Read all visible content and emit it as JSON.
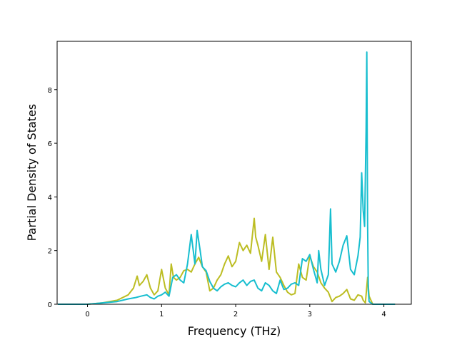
{
  "chart_data": {
    "type": "line",
    "title": "",
    "xlabel": "Frequency (THz)",
    "ylabel": "Partial Density of States",
    "xlim": [
      -0.41,
      4.37
    ],
    "ylim": [
      0,
      9.8
    ],
    "xticks": [
      0,
      1,
      2,
      3,
      4
    ],
    "yticks": [
      0,
      2,
      4,
      6,
      8
    ],
    "xtick_labels": [
      "0",
      "1",
      "2",
      "3",
      "4"
    ],
    "ytick_labels": [
      "0",
      "2",
      "4",
      "6",
      "8"
    ],
    "grid": false,
    "legend": "none",
    "series": [
      {
        "color": "#bcbd22",
        "x": [
          -0.4,
          0.0,
          0.2,
          0.4,
          0.55,
          0.62,
          0.67,
          0.7,
          0.75,
          0.8,
          0.85,
          0.9,
          0.95,
          1.0,
          1.05,
          1.1,
          1.13,
          1.16,
          1.2,
          1.25,
          1.3,
          1.35,
          1.4,
          1.45,
          1.5,
          1.55,
          1.6,
          1.65,
          1.7,
          1.75,
          1.8,
          1.85,
          1.9,
          1.95,
          2.0,
          2.05,
          2.1,
          2.15,
          2.2,
          2.25,
          2.27,
          2.3,
          2.35,
          2.4,
          2.45,
          2.5,
          2.55,
          2.6,
          2.65,
          2.7,
          2.75,
          2.8,
          2.85,
          2.9,
          2.95,
          3.0,
          3.05,
          3.1,
          3.15,
          3.2,
          3.25,
          3.3,
          3.35,
          3.4,
          3.45,
          3.5,
          3.55,
          3.6,
          3.65,
          3.7,
          3.72,
          3.75,
          3.78,
          3.8,
          3.85,
          4.15
        ],
        "y": [
          0,
          0,
          0.05,
          0.15,
          0.35,
          0.6,
          1.05,
          0.7,
          0.85,
          1.1,
          0.6,
          0.35,
          0.5,
          1.3,
          0.6,
          0.35,
          1.5,
          1.0,
          0.9,
          1.0,
          1.25,
          1.3,
          1.2,
          1.5,
          1.75,
          1.4,
          1.2,
          0.5,
          0.6,
          0.9,
          1.1,
          1.5,
          1.8,
          1.4,
          1.6,
          2.3,
          2.0,
          2.2,
          1.9,
          3.2,
          2.5,
          2.2,
          1.6,
          2.6,
          1.3,
          2.5,
          1.2,
          1.0,
          0.7,
          0.45,
          0.35,
          0.4,
          1.5,
          1.0,
          0.9,
          1.8,
          1.4,
          1.2,
          0.8,
          0.6,
          0.45,
          0.1,
          0.25,
          0.3,
          0.4,
          0.55,
          0.2,
          0.15,
          0.35,
          0.3,
          0.15,
          0.05,
          1.0,
          0.3,
          0,
          0
        ]
      },
      {
        "color": "#17becf",
        "x": [
          -0.4,
          0.0,
          0.2,
          0.4,
          0.55,
          0.65,
          0.72,
          0.8,
          0.85,
          0.9,
          0.95,
          1.0,
          1.05,
          1.1,
          1.15,
          1.2,
          1.25,
          1.3,
          1.35,
          1.4,
          1.45,
          1.48,
          1.52,
          1.55,
          1.6,
          1.65,
          1.7,
          1.75,
          1.8,
          1.85,
          1.9,
          1.95,
          2.0,
          2.05,
          2.1,
          2.15,
          2.2,
          2.25,
          2.3,
          2.35,
          2.4,
          2.45,
          2.5,
          2.55,
          2.6,
          2.65,
          2.7,
          2.75,
          2.8,
          2.85,
          2.9,
          2.95,
          3.0,
          3.05,
          3.1,
          3.12,
          3.15,
          3.2,
          3.25,
          3.28,
          3.3,
          3.35,
          3.4,
          3.45,
          3.5,
          3.55,
          3.6,
          3.65,
          3.68,
          3.7,
          3.72,
          3.74,
          3.76,
          3.77,
          3.78,
          3.79,
          3.8,
          3.85,
          4.15
        ],
        "y": [
          0,
          0,
          0.05,
          0.1,
          0.2,
          0.25,
          0.3,
          0.35,
          0.25,
          0.2,
          0.3,
          0.35,
          0.45,
          0.3,
          1.0,
          1.1,
          0.9,
          0.8,
          1.5,
          2.6,
          1.5,
          2.75,
          2.0,
          1.4,
          1.25,
          0.85,
          0.6,
          0.5,
          0.65,
          0.75,
          0.8,
          0.7,
          0.65,
          0.8,
          0.9,
          0.7,
          0.85,
          0.9,
          0.6,
          0.5,
          0.8,
          0.7,
          0.5,
          0.4,
          0.9,
          0.55,
          0.6,
          0.75,
          0.8,
          0.7,
          1.7,
          1.6,
          1.85,
          1.3,
          0.8,
          2.0,
          1.3,
          0.7,
          1.1,
          3.55,
          1.5,
          1.2,
          1.6,
          2.2,
          2.55,
          1.3,
          1.1,
          1.8,
          2.5,
          4.9,
          3.5,
          2.9,
          6.5,
          9.4,
          3.0,
          0.5,
          0.1,
          0,
          0
        ]
      }
    ]
  }
}
